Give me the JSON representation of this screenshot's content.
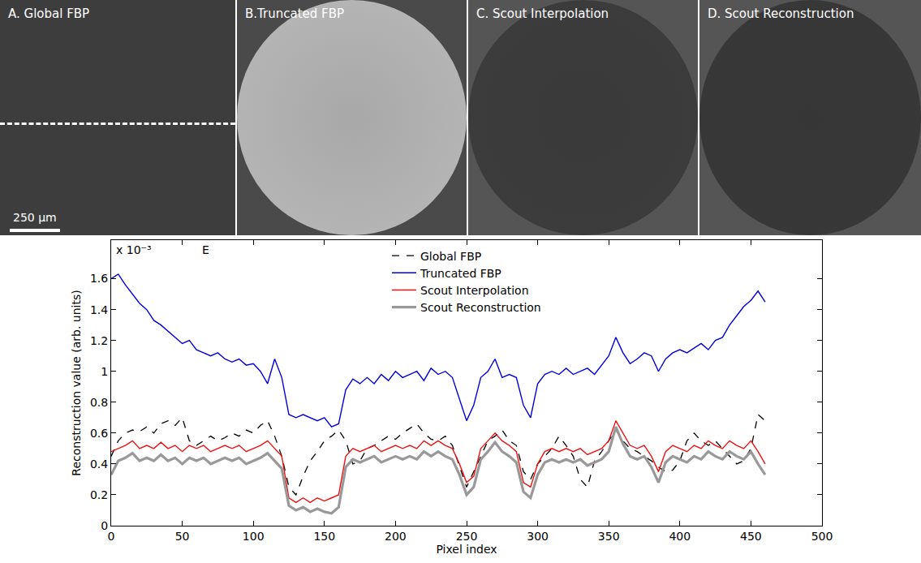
{
  "chart_data": {
    "type": "line",
    "x_label": "Pixel index",
    "y_label": "Reconstruction value (arb. units)",
    "annotations": [
      "E",
      "x 10⁻³"
    ],
    "legend": "upper center",
    "xlim": [
      0,
      500
    ],
    "xticks": [
      0,
      50,
      100,
      150,
      200,
      250,
      300,
      350,
      400,
      450,
      500
    ],
    "ylim": [
      0,
      1.85
    ],
    "yticks": [
      0,
      0.2,
      0.4,
      0.6,
      0.8,
      1,
      1.2,
      1.4,
      1.6
    ],
    "grid": false,
    "x": [
      0,
      5,
      10,
      15,
      20,
      25,
      30,
      35,
      40,
      45,
      50,
      55,
      60,
      65,
      70,
      75,
      80,
      85,
      90,
      95,
      100,
      105,
      110,
      115,
      120,
      125,
      130,
      135,
      140,
      145,
      150,
      155,
      160,
      165,
      170,
      175,
      180,
      185,
      190,
      195,
      200,
      205,
      210,
      215,
      220,
      225,
      230,
      235,
      240,
      245,
      250,
      255,
      260,
      265,
      270,
      275,
      280,
      285,
      290,
      295,
      300,
      305,
      310,
      315,
      320,
      325,
      330,
      335,
      340,
      345,
      350,
      355,
      360,
      365,
      370,
      375,
      380,
      385,
      390,
      395,
      400,
      405,
      410,
      415,
      420,
      425,
      430,
      435,
      440,
      445,
      450,
      455,
      460
    ],
    "series": [
      {
        "name": "Global FBP",
        "color": "#000000",
        "line_style": "dashed",
        "values": [
          0.45,
          0.55,
          0.6,
          0.62,
          0.61,
          0.64,
          0.6,
          0.66,
          0.68,
          0.65,
          0.7,
          0.55,
          0.52,
          0.55,
          0.58,
          0.55,
          0.57,
          0.6,
          0.58,
          0.62,
          0.6,
          0.65,
          0.68,
          0.58,
          0.45,
          0.25,
          0.2,
          0.32,
          0.42,
          0.48,
          0.55,
          0.58,
          0.62,
          0.55,
          0.4,
          0.42,
          0.5,
          0.52,
          0.55,
          0.58,
          0.56,
          0.6,
          0.63,
          0.66,
          0.6,
          0.56,
          0.55,
          0.58,
          0.52,
          0.38,
          0.25,
          0.35,
          0.45,
          0.55,
          0.58,
          0.62,
          0.55,
          0.52,
          0.35,
          0.3,
          0.4,
          0.45,
          0.5,
          0.58,
          0.52,
          0.45,
          0.3,
          0.25,
          0.42,
          0.48,
          0.55,
          0.62,
          0.55,
          0.5,
          0.48,
          0.45,
          0.42,
          0.38,
          0.35,
          0.36,
          0.42,
          0.55,
          0.6,
          0.55,
          0.52,
          0.55,
          0.5,
          0.45,
          0.4,
          0.42,
          0.5,
          0.72,
          0.68
        ]
      },
      {
        "name": "Truncated FBP",
        "color": "#0000dd",
        "line_style": "solid",
        "values": [
          1.6,
          1.63,
          1.56,
          1.5,
          1.44,
          1.4,
          1.33,
          1.3,
          1.26,
          1.22,
          1.18,
          1.2,
          1.14,
          1.12,
          1.1,
          1.12,
          1.08,
          1.06,
          1.08,
          1.04,
          1.05,
          1.0,
          0.92,
          1.08,
          0.96,
          0.72,
          0.7,
          0.72,
          0.7,
          0.68,
          0.7,
          0.64,
          0.66,
          0.88,
          0.95,
          0.92,
          0.96,
          0.92,
          0.98,
          0.94,
          1.0,
          0.96,
          0.98,
          1.0,
          0.94,
          1.02,
          0.98,
          1.0,
          0.96,
          0.82,
          0.68,
          0.78,
          0.96,
          1.0,
          1.08,
          0.96,
          0.98,
          0.96,
          0.78,
          0.7,
          0.92,
          0.98,
          1.0,
          0.98,
          1.02,
          0.98,
          1.0,
          1.02,
          0.98,
          1.04,
          1.1,
          1.22,
          1.12,
          1.05,
          1.08,
          1.12,
          1.1,
          1.0,
          1.08,
          1.12,
          1.14,
          1.12,
          1.15,
          1.18,
          1.14,
          1.2,
          1.22,
          1.3,
          1.36,
          1.42,
          1.46,
          1.52,
          1.45
        ]
      },
      {
        "name": "Scout Interpolation",
        "color": "#ee1111",
        "line_style": "solid",
        "values": [
          0.48,
          0.5,
          0.52,
          0.55,
          0.5,
          0.52,
          0.5,
          0.54,
          0.5,
          0.52,
          0.48,
          0.52,
          0.5,
          0.52,
          0.48,
          0.5,
          0.52,
          0.5,
          0.52,
          0.48,
          0.5,
          0.52,
          0.55,
          0.5,
          0.45,
          0.18,
          0.15,
          0.18,
          0.15,
          0.18,
          0.16,
          0.18,
          0.2,
          0.45,
          0.5,
          0.48,
          0.5,
          0.52,
          0.48,
          0.5,
          0.52,
          0.5,
          0.52,
          0.5,
          0.55,
          0.52,
          0.55,
          0.52,
          0.5,
          0.4,
          0.28,
          0.32,
          0.5,
          0.55,
          0.6,
          0.55,
          0.52,
          0.48,
          0.28,
          0.25,
          0.4,
          0.48,
          0.5,
          0.48,
          0.5,
          0.48,
          0.5,
          0.46,
          0.48,
          0.5,
          0.55,
          0.68,
          0.6,
          0.52,
          0.5,
          0.52,
          0.45,
          0.35,
          0.48,
          0.52,
          0.5,
          0.48,
          0.52,
          0.5,
          0.55,
          0.52,
          0.5,
          0.55,
          0.52,
          0.5,
          0.55,
          0.48,
          0.4
        ]
      },
      {
        "name": "Scout Reconstruction",
        "color": "#999999",
        "line_style": "solid",
        "values": [
          0.33,
          0.42,
          0.44,
          0.47,
          0.42,
          0.44,
          0.42,
          0.46,
          0.42,
          0.44,
          0.4,
          0.44,
          0.42,
          0.44,
          0.4,
          0.42,
          0.44,
          0.42,
          0.44,
          0.4,
          0.42,
          0.44,
          0.47,
          0.42,
          0.37,
          0.13,
          0.1,
          0.12,
          0.09,
          0.11,
          0.09,
          0.08,
          0.12,
          0.38,
          0.43,
          0.41,
          0.43,
          0.45,
          0.41,
          0.43,
          0.45,
          0.43,
          0.45,
          0.43,
          0.48,
          0.45,
          0.48,
          0.45,
          0.43,
          0.33,
          0.2,
          0.25,
          0.43,
          0.48,
          0.54,
          0.48,
          0.45,
          0.41,
          0.22,
          0.18,
          0.33,
          0.41,
          0.43,
          0.41,
          0.43,
          0.41,
          0.43,
          0.39,
          0.41,
          0.43,
          0.48,
          0.64,
          0.53,
          0.45,
          0.43,
          0.45,
          0.38,
          0.28,
          0.41,
          0.45,
          0.43,
          0.41,
          0.45,
          0.43,
          0.48,
          0.45,
          0.43,
          0.48,
          0.45,
          0.43,
          0.48,
          0.4,
          0.33
        ]
      }
    ]
  },
  "panels": [
    "A. Global FBP",
    "B.Truncated FBP",
    "C. Scout Interpolation",
    "D. Scout Reconstruction"
  ],
  "scale_bar": "250 μm"
}
